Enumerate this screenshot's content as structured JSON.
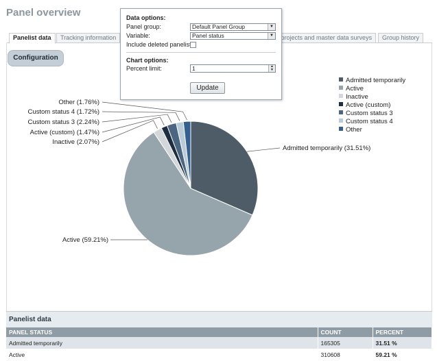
{
  "page": {
    "title": "Panel overview"
  },
  "tabs": [
    {
      "label": "Panelist data",
      "active": true
    },
    {
      "label": "Tracking information",
      "active": false
    },
    {
      "label": "el projects and master data surveys",
      "active": false
    },
    {
      "label": "Group history",
      "active": false
    }
  ],
  "configuration_button": "Configuration",
  "popup": {
    "data_options_title": "Data options:",
    "panel_group_label": "Panel group:",
    "panel_group_value": "Default Panel Group",
    "variable_label": "Variable:",
    "variable_value": "Panel status",
    "include_deleted_label": "Include deleted panelists:",
    "include_deleted_checked": false,
    "chart_options_title": "Chart options:",
    "percent_limit_label": "Percent limit:",
    "percent_limit_value": "1",
    "update_button": "Update"
  },
  "chart_data": {
    "type": "pie",
    "title": "",
    "slices": [
      {
        "name": "Admitted temporarily",
        "value": 31.51,
        "label": "Admitted temporarily (31.51%)",
        "color": "#4d5c66"
      },
      {
        "name": "Active",
        "value": 59.21,
        "label": "Active (59.21%)",
        "color": "#96a4ac"
      },
      {
        "name": "Inactive",
        "value": 2.07,
        "label": "Inactive (2.07%)",
        "color": "#d3d7da"
      },
      {
        "name": "Active (custom)",
        "value": 1.47,
        "label": "Active (custom) (1.47%)",
        "color": "#1c2e3f"
      },
      {
        "name": "Custom status 3",
        "value": 2.24,
        "label": "Custom status 3 (2.24%)",
        "color": "#4a6682"
      },
      {
        "name": "Custom status 4",
        "value": 1.72,
        "label": "Custom status 4 (1.72%)",
        "color": "#b9cad9"
      },
      {
        "name": "Other",
        "value": 1.76,
        "label": "Other (1.76%)",
        "color": "#345f91"
      }
    ],
    "legend_position": "top-right"
  },
  "legend": [
    {
      "label": "Admitted temporarily",
      "color": "#4d5c66"
    },
    {
      "label": "Active",
      "color": "#96a4ac"
    },
    {
      "label": "Inactive",
      "color": "#d3d7da"
    },
    {
      "label": "Active (custom)",
      "color": "#1c2e3f"
    },
    {
      "label": "Custom status 3",
      "color": "#4a6682"
    },
    {
      "label": "Custom status 4",
      "color": "#b9cad9"
    },
    {
      "label": "Other",
      "color": "#345f91"
    }
  ],
  "data_table": {
    "title": "Panelist data",
    "columns": [
      "PANEL STATUS",
      "COUNT",
      "PERCENT"
    ],
    "rows": [
      {
        "status": "Admitted temporarily",
        "count": "165305",
        "percent": "31.51 %"
      },
      {
        "status": "Active",
        "count": "310608",
        "percent": "59.21 %"
      }
    ]
  }
}
